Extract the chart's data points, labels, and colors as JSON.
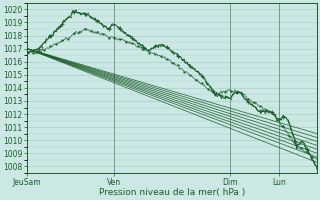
{
  "xlabel": "Pression niveau de la mer( hPa )",
  "bg_color": "#cce8e4",
  "grid_color": "#aacccc",
  "line_color": "#1a5c28",
  "ylim": [
    1007.5,
    1020.5
  ],
  "yticks": [
    1008,
    1009,
    1010,
    1011,
    1012,
    1013,
    1014,
    1015,
    1016,
    1017,
    1018,
    1019,
    1020
  ],
  "xtick_labels": [
    "JeuSam",
    "Ven",
    "Dim",
    "Lun"
  ],
  "xtick_positions": [
    0.0,
    0.3,
    0.7,
    0.87
  ],
  "num_points": 300,
  "straight_starts": [
    1017.0,
    1017.0,
    1017.0,
    1017.0,
    1017.0,
    1017.0,
    1017.0,
    1017.0
  ],
  "straight_ends": [
    1008.3,
    1008.7,
    1009.0,
    1009.3,
    1009.6,
    1009.9,
    1010.2,
    1010.5
  ]
}
